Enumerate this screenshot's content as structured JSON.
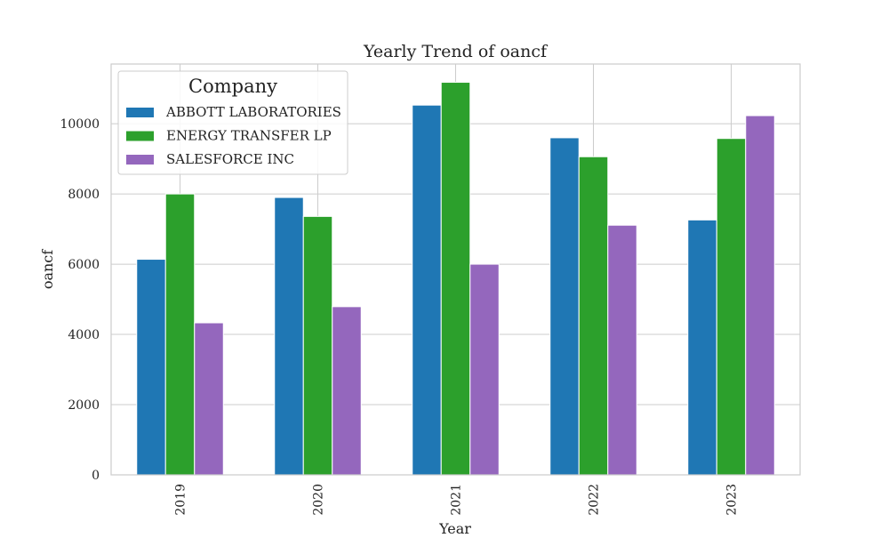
{
  "chart_data": {
    "type": "bar",
    "title": "Yearly Trend of oancf",
    "xlabel": "Year",
    "ylabel": "oancf",
    "categories": [
      "2019",
      "2020",
      "2021",
      "2022",
      "2023"
    ],
    "ylim": [
      0,
      11700
    ],
    "yticks": [
      0,
      2000,
      4000,
      6000,
      8000,
      10000
    ],
    "grid": true,
    "legend": {
      "title": "Company",
      "position": "top-left"
    },
    "series": [
      {
        "name": "ABBOTT LABORATORIES",
        "color": "#1f77b4",
        "values": [
          6140,
          7900,
          10530,
          9600,
          7260
        ]
      },
      {
        "name": "ENERGY TRANSFER LP",
        "color": "#2ca02c",
        "values": [
          8000,
          7360,
          11180,
          9060,
          9580
        ]
      },
      {
        "name": "SALESFORCE INC",
        "color": "#9467bd",
        "values": [
          4330,
          4790,
          6000,
          7110,
          10230
        ]
      }
    ]
  }
}
